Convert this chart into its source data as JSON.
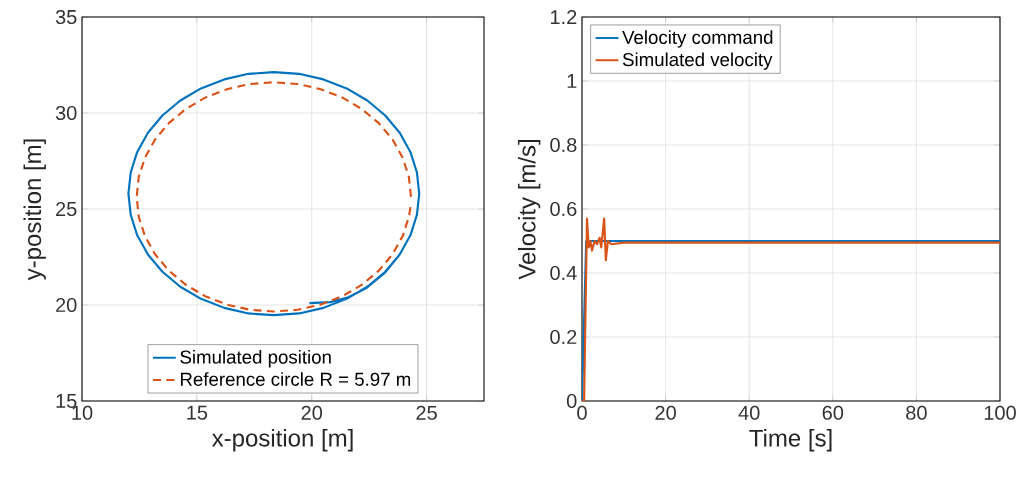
{
  "chart_data": [
    {
      "type": "line",
      "xlabel": "x-position [m]",
      "ylabel": "y-position [m]",
      "xlim": [
        10,
        27.5
      ],
      "ylim": [
        15,
        35
      ],
      "xticks": [
        10,
        15,
        20,
        25
      ],
      "yticks": [
        15,
        20,
        25,
        30,
        35
      ],
      "grid": true,
      "legend": "bottom",
      "series": [
        {
          "name": "Simulated position",
          "color": "#0072bd",
          "line_style": "solid",
          "x": [
            19.9,
            20.8,
            21.6,
            22.4,
            23.2,
            23.83,
            24.3,
            24.58,
            24.68,
            24.58,
            24.3,
            23.83,
            23.2,
            22.42,
            21.52,
            20.51,
            19.45,
            18.35,
            17.25,
            16.19,
            15.18,
            14.28,
            13.5,
            12.87,
            12.4,
            12.12,
            12.02,
            12.12,
            12.4,
            12.87,
            13.5,
            14.28,
            15.18,
            16.19,
            17.25,
            18.35,
            19.45,
            20.51,
            21.52,
            22.42,
            23.2,
            23.83,
            24.3,
            24.58
          ],
          "values": [
            20.1,
            20.15,
            20.4,
            20.9,
            21.7,
            22.63,
            23.64,
            24.7,
            25.8,
            26.9,
            27.96,
            28.97,
            29.87,
            30.65,
            31.28,
            31.75,
            32.04,
            32.13,
            32.04,
            31.75,
            31.28,
            30.65,
            29.87,
            28.97,
            27.96,
            26.9,
            25.8,
            24.7,
            23.64,
            22.63,
            21.73,
            20.95,
            20.32,
            19.85,
            19.56,
            19.47,
            19.56,
            19.85,
            20.32,
            20.95,
            21.73,
            22.63,
            23.64,
            24.7
          ]
        },
        {
          "name": "Reference circle R = 5.97 m",
          "color": "#d95319",
          "line_style": "dashed",
          "x": [
            24.32,
            24.23,
            23.96,
            23.52,
            22.92,
            22.19,
            21.34,
            20.39,
            19.39,
            18.35,
            17.31,
            16.31,
            15.36,
            14.51,
            13.78,
            13.18,
            12.74,
            12.47,
            12.38,
            12.47,
            12.74,
            13.18,
            13.78,
            14.51,
            15.36,
            16.31,
            17.31,
            18.35,
            19.39,
            20.39,
            21.34,
            22.19,
            22.92,
            23.52,
            23.96,
            24.23,
            24.3
          ],
          "values": [
            25.63,
            26.67,
            27.67,
            28.62,
            29.47,
            30.2,
            30.8,
            31.24,
            31.51,
            31.6,
            31.51,
            31.24,
            30.8,
            30.2,
            29.47,
            28.62,
            27.67,
            26.67,
            25.63,
            24.59,
            23.59,
            22.64,
            21.79,
            21.06,
            20.46,
            20.02,
            19.75,
            19.66,
            19.75,
            20.02,
            20.46,
            21.06,
            21.79,
            22.64,
            23.59,
            24.59,
            25.11
          ]
        }
      ]
    },
    {
      "type": "line",
      "xlabel": "Time [s]",
      "ylabel": "Velocity [m/s]",
      "xlim": [
        0,
        100
      ],
      "ylim": [
        0,
        1.2
      ],
      "xticks": [
        0,
        20,
        40,
        60,
        80,
        100
      ],
      "yticks": [
        0,
        0.2,
        0.4,
        0.6,
        0.8,
        1,
        1.2
      ],
      "grid": true,
      "legend": "top left",
      "series": [
        {
          "name": "Velocity command",
          "color": "#0072bd",
          "line_style": "solid",
          "x": [
            0,
            1,
            100
          ],
          "values": [
            0,
            0.5,
            0.5
          ]
        },
        {
          "name": "Simulated velocity",
          "color": "#d95319",
          "line_style": "solid",
          "x": [
            0,
            0.5,
            1.2,
            1.6,
            2.0,
            2.4,
            3.0,
            3.6,
            4.2,
            4.6,
            5.3,
            5.7,
            6.2,
            7,
            10,
            100
          ],
          "values": [
            0,
            0,
            0.57,
            0.48,
            0.5,
            0.47,
            0.5,
            0.49,
            0.51,
            0.48,
            0.57,
            0.44,
            0.5,
            0.49,
            0.495,
            0.495
          ]
        }
      ]
    }
  ]
}
